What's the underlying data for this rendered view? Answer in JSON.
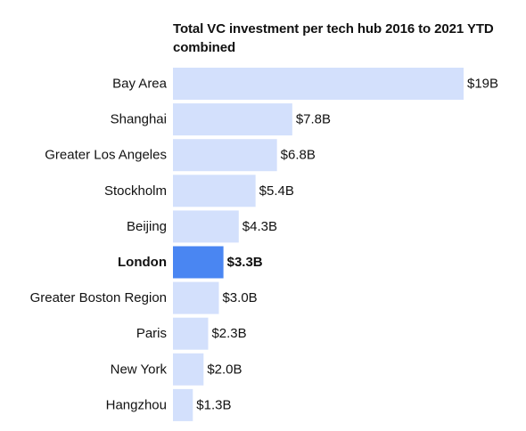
{
  "chart_data": {
    "type": "bar",
    "orientation": "horizontal",
    "title": "Total VC investment per tech hub 2016 to 2021 YTD combined",
    "categories": [
      "Bay Area",
      "Shanghai",
      "Greater Los Angeles",
      "Stockholm",
      "Beijing",
      "London",
      "Greater Boston Region",
      "Paris",
      "New York",
      "Hangzhou"
    ],
    "values": [
      19,
      7.8,
      6.8,
      5.4,
      4.3,
      3.3,
      3.0,
      2.3,
      2.0,
      1.3
    ],
    "value_labels": [
      "$19B",
      "$7.8B",
      "$6.8B",
      "$5.4B",
      "$4.3B",
      "$3.3B",
      "$3.0B",
      "$2.3B",
      "$2.0B",
      "$1.3B"
    ],
    "highlight": "London",
    "unit": "$B",
    "xlim": [
      0,
      19
    ],
    "grid": false,
    "legend": "none",
    "colors": {
      "bar": "#d3e0fc",
      "highlight_bar": "#4a86f2",
      "text": "#111111"
    }
  }
}
